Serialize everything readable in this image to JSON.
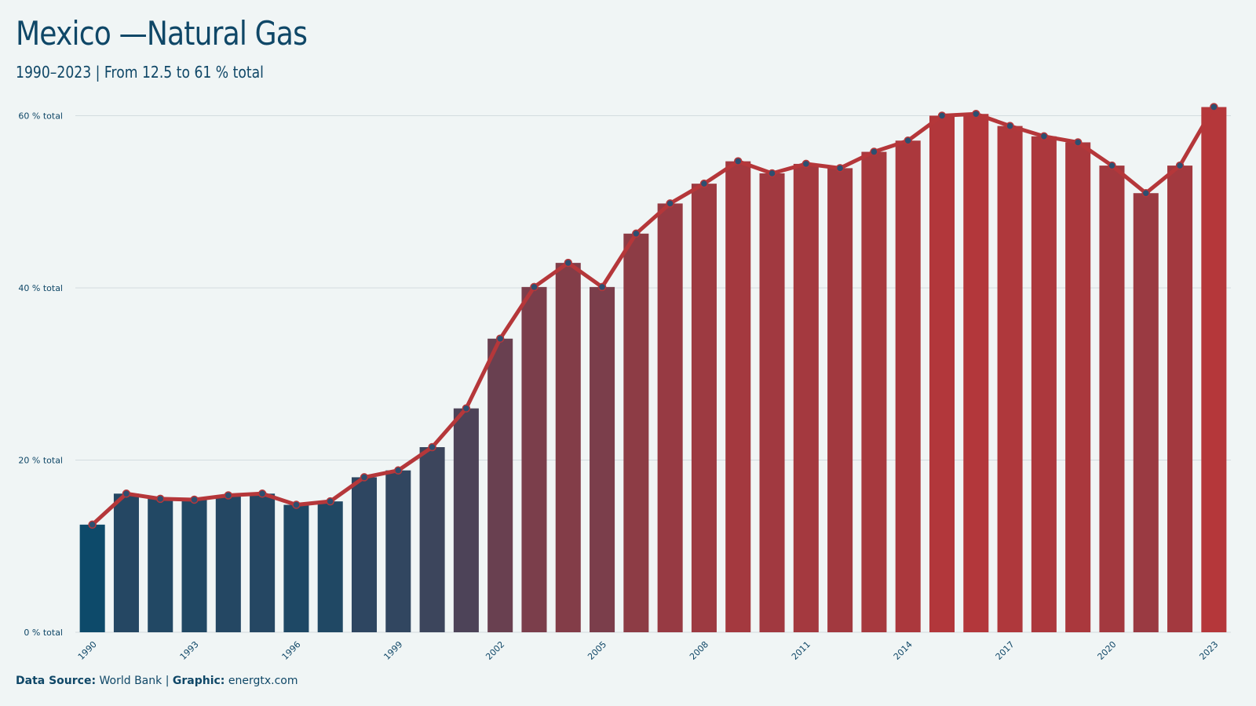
{
  "header": {
    "title": "Mexico —Natural Gas",
    "subtitle": "1990–2023 | From 12.5 to 61 % total"
  },
  "footer": {
    "source_label": "Data Source:",
    "source_value": "World Bank",
    "separator": "|",
    "graphic_label": "Graphic:",
    "graphic_value": "energtx.com"
  },
  "colors": {
    "start": "#0d4a6a",
    "end": "#b5373a",
    "line": "#b5373a",
    "point_fill": "#2d4f70",
    "grid": "#d3dcdf",
    "text": "#0f4767"
  },
  "chart_data": {
    "type": "bar",
    "categories": [
      "1990",
      "1991",
      "1992",
      "1993",
      "1994",
      "1995",
      "1996",
      "1997",
      "1998",
      "1999",
      "2000",
      "2001",
      "2002",
      "2003",
      "2004",
      "2005",
      "2006",
      "2007",
      "2008",
      "2009",
      "2010",
      "2011",
      "2012",
      "2013",
      "2014",
      "2015",
      "2016",
      "2017",
      "2018",
      "2019",
      "2020",
      "2021",
      "2022",
      "2023"
    ],
    "values": [
      12.5,
      16.1,
      15.5,
      15.4,
      15.9,
      16.1,
      14.8,
      15.2,
      18.0,
      18.8,
      21.5,
      26.0,
      34.1,
      40.1,
      42.9,
      40.1,
      46.3,
      49.8,
      52.1,
      54.7,
      53.3,
      54.4,
      53.9,
      55.8,
      57.1,
      60.0,
      60.2,
      58.8,
      57.6,
      56.9,
      54.2,
      51.0,
      54.2,
      61.0
    ],
    "line_overlay": true,
    "x_tick_labels": [
      "1990",
      "1993",
      "1996",
      "1999",
      "2002",
      "2005",
      "2008",
      "2011",
      "2014",
      "2017",
      "2020",
      "2023"
    ],
    "y_ticks": [
      0,
      20,
      40,
      60
    ],
    "y_tick_labels": [
      "0 % total",
      "20 % total",
      "40 % total",
      "60 % total"
    ],
    "ylim": [
      0,
      62.5
    ],
    "grid": true,
    "legend": "none"
  }
}
